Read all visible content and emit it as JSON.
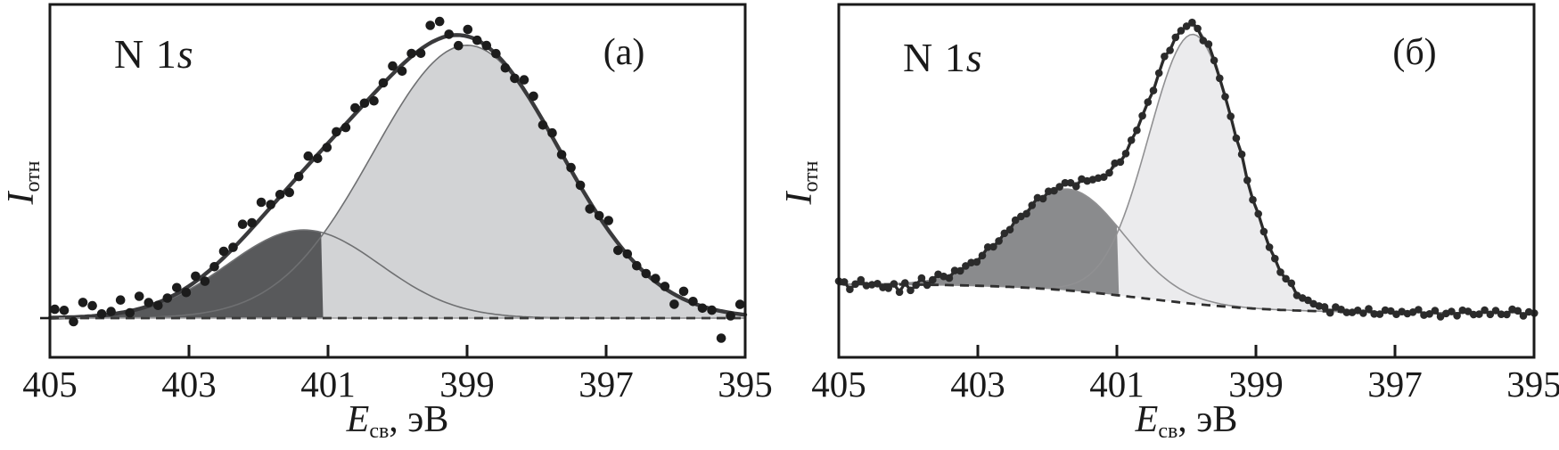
{
  "figure": {
    "background": "#ffffff",
    "axis_color": "#1a1a1a",
    "text_color": "#1a1a1a"
  },
  "panels": [
    {
      "corner_label": "(a)",
      "spectrum_label": {
        "element": "N 1",
        "orbital_italic": "s"
      },
      "y_axis_label": {
        "symbol": "I",
        "subscript": "отн"
      },
      "x_axis_label": {
        "symbol": "E",
        "subscript": "св",
        "unit": ", эВ"
      }
    },
    {
      "corner_label": "(б)",
      "spectrum_label": {
        "element": "N 1",
        "orbital_italic": "s"
      },
      "y_axis_label": {
        "symbol": "I",
        "subscript": "отн"
      },
      "x_axis_label": {
        "symbol": "E",
        "subscript": "св",
        "unit": ", эВ"
      }
    }
  ],
  "chart_data": [
    {
      "type": "scatter",
      "subtype": "xps-spectrum-with-gaussian-fit",
      "title": "N 1s (a)",
      "xlabel": "Eсв, эВ",
      "ylabel": "Iотн",
      "x_range": [
        405,
        395
      ],
      "x_reversed": true,
      "x_ticks": [
        405,
        403,
        401,
        399,
        397,
        395
      ],
      "ylim_relative": [
        0,
        1.1
      ],
      "grid": false,
      "legend": "none",
      "background_curve": {
        "style": "dashed",
        "model": "flat",
        "level": 0.0,
        "color": "#3a3a3a",
        "underline_color": "#a0a0a2"
      },
      "components": [
        {
          "name": "high-BE-component",
          "center_ev": 401.35,
          "amplitude": 0.31,
          "sigma_ev": 1.1,
          "fill": "#58595b"
        },
        {
          "name": "main-component",
          "center_ev": 399.0,
          "amplitude": 0.96,
          "sigma_ev": 1.35,
          "fill": "#d2d3d5"
        }
      ],
      "component_outline_color": "#6f7072",
      "crossing_ev": 401.07,
      "envelope": {
        "model": "sum-of-components",
        "color": "#3a3a3c",
        "width": 4.4
      },
      "data_points": {
        "mode": "scatter-dots",
        "color": "#1c1c1c",
        "radius_px": 5.3,
        "x_start_ev": 404.93,
        "x_step_ev": -0.135,
        "count": 74,
        "noise_amp": 0.03,
        "left_bias": {
          "above_ev": 403.4,
          "bias": 0.013
        },
        "noise_overrides_ev_delta": [
          [
            404.52,
            0.05
          ],
          [
            403.92,
            0.045
          ],
          [
            402.2,
            0.05
          ],
          [
            401.9,
            0.055
          ],
          [
            399.56,
            0.062
          ],
          [
            399.42,
            0.06
          ],
          [
            398.05,
            0.03
          ],
          [
            396.98,
            0.035
          ],
          [
            396.0,
            -0.035
          ],
          [
            395.37,
            -0.095
          ]
        ]
      }
    },
    {
      "type": "line",
      "subtype": "xps-spectrum-with-gaussian-fit",
      "title": "N 1s (б)",
      "xlabel": "Eсв, эВ",
      "ylabel": "Iотн",
      "x_range": [
        405,
        395
      ],
      "x_reversed": true,
      "x_ticks": [
        405,
        403,
        401,
        399,
        397,
        395
      ],
      "ylim_relative": [
        0,
        1.1
      ],
      "grid": false,
      "legend": "none",
      "background_curve": {
        "style": "dashed",
        "model": "sigmoid",
        "b0": 0.012,
        "b1": 0.1,
        "e0": 400.6,
        "w": 0.9,
        "draw_to_ev": 397.2,
        "color": "#2f2f2f"
      },
      "components": [
        {
          "name": "high-BE-component",
          "center_ev": 401.7,
          "amplitude": 0.35,
          "sigma_ev": 0.8,
          "fill": "#8a8b8d"
        },
        {
          "name": "main-component",
          "center_ev": 399.9,
          "amplitude": 0.93,
          "sigma_ev": 0.64,
          "fill": "#ebebed"
        }
      ],
      "component_outline_color": "#909092",
      "crossing_ev": 400.97,
      "envelope": {
        "model": "sum-of-components-plus-background",
        "color": "#8a8a8c",
        "width": 1.6
      },
      "data_points": {
        "mode": "connected-dot-trace",
        "color": "#2b2b2b",
        "line_width": 3.3,
        "radius_px": 4.3,
        "x_start_ev": 405.0,
        "x_step_ev": -0.0794,
        "count": 127,
        "noise_amp": 0.011,
        "left_noise_boost": {
          "above_ev": 403.5,
          "factor": 1.7
        },
        "noise_overrides_ev_delta": [
          [
            404.28,
            -0.015
          ],
          [
            404.12,
            -0.03
          ],
          [
            403.97,
            -0.026
          ],
          [
            399.93,
            0.012
          ],
          [
            396.35,
            -0.014
          ],
          [
            395.32,
            0.012
          ]
        ]
      }
    }
  ]
}
